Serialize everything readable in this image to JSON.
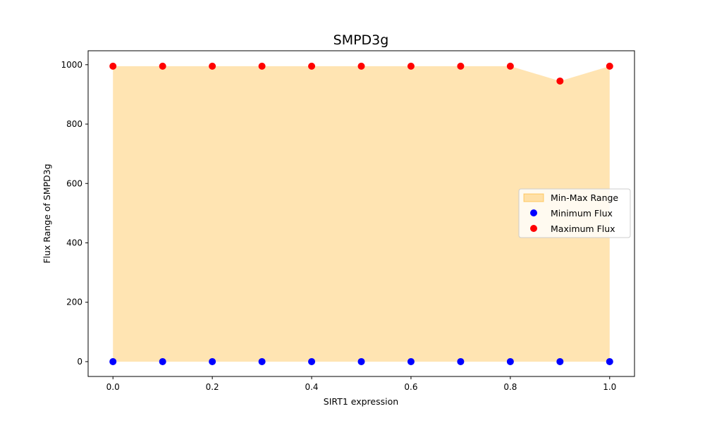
{
  "chart_data": {
    "type": "scatter",
    "title": "SMPD3g",
    "xlabel": "SIRT1 expression",
    "ylabel": "Flux Range of SMPD3g",
    "xlim": [
      -0.05,
      1.05
    ],
    "ylim": [
      -50,
      1047
    ],
    "xticks": [
      0.0,
      0.2,
      0.4,
      0.6,
      0.8,
      1.0
    ],
    "xtick_labels": [
      "0.0",
      "0.2",
      "0.4",
      "0.6",
      "0.8",
      "1.0"
    ],
    "yticks": [
      0,
      200,
      400,
      600,
      800,
      1000
    ],
    "ytick_labels": [
      "0",
      "200",
      "400",
      "600",
      "800",
      "1000"
    ],
    "grid": false,
    "legend_placement": "center-right",
    "x": [
      0.0,
      0.1,
      0.2,
      0.3,
      0.4,
      0.5,
      0.6,
      0.7,
      0.8,
      0.9,
      1.0
    ],
    "series": [
      {
        "name": "Min-Max Range",
        "kind": "fill_between",
        "color": "#ffa500",
        "opacity": 0.3
      },
      {
        "name": "Minimum Flux",
        "kind": "scatter",
        "color": "#0000ff",
        "values": [
          0,
          0,
          0,
          0,
          0,
          0,
          0,
          0,
          0,
          0,
          0
        ]
      },
      {
        "name": "Maximum Flux",
        "kind": "scatter",
        "color": "#ff0000",
        "values": [
          995,
          995,
          995,
          995,
          995,
          995,
          995,
          995,
          995,
          945,
          995
        ]
      }
    ]
  }
}
